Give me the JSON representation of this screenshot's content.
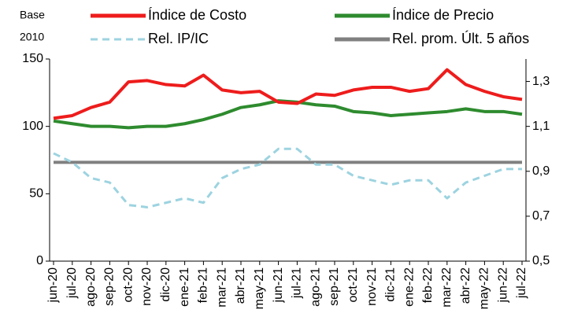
{
  "chart_data": {
    "type": "line",
    "y_label": [
      "Base",
      "2010"
    ],
    "categories": [
      "jun-20",
      "jul-20",
      "ago-20",
      "sep-20",
      "oct-20",
      "nov-20",
      "dic-20",
      "ene-21",
      "feb-21",
      "mar-21",
      "abr-21",
      "may-21",
      "jun-21",
      "jul-21",
      "ago-21",
      "sep-21",
      "oct-21",
      "nov-21",
      "dic-21",
      "ene-22",
      "feb-22",
      "mar-22",
      "abr-22",
      "may-22",
      "jun-22",
      "jul-22"
    ],
    "series": [
      {
        "name": "Índice de Costo",
        "color": "#ee1c1c",
        "dash": false,
        "values": [
          106,
          108,
          114,
          118,
          133,
          134,
          131,
          130,
          138,
          127,
          125,
          126,
          118,
          117,
          124,
          123,
          127,
          129,
          129,
          126,
          128,
          142,
          131,
          126,
          122,
          120
        ]
      },
      {
        "name": "Índice de Precio",
        "color": "#2e8b2e",
        "dash": false,
        "values": [
          104,
          102,
          100,
          100,
          99,
          100,
          100,
          102,
          105,
          109,
          114,
          116,
          119,
          118,
          116,
          115,
          111,
          110,
          108,
          109,
          110,
          111,
          113,
          111,
          111,
          109
        ]
      },
      {
        "name": "Rel. IP/IC",
        "color": "#9dd3e0",
        "dash": true,
        "axis": "y2",
        "values": [
          0.98,
          0.94,
          0.87,
          0.85,
          0.75,
          0.74,
          0.76,
          0.78,
          0.76,
          0.87,
          0.91,
          0.93,
          1.0,
          1.0,
          0.93,
          0.93,
          0.88,
          0.86,
          0.84,
          0.86,
          0.86,
          0.78,
          0.85,
          0.88,
          0.91,
          0.91
        ]
      },
      {
        "name": "Rel. prom. Últ. 5 años",
        "color": "#808080",
        "dash": false,
        "axis": "y2",
        "values": [
          0.94,
          0.94,
          0.94,
          0.94,
          0.94,
          0.94,
          0.94,
          0.94,
          0.94,
          0.94,
          0.94,
          0.94,
          0.94,
          0.94,
          0.94,
          0.94,
          0.94,
          0.94,
          0.94,
          0.94,
          0.94,
          0.94,
          0.94,
          0.94,
          0.94,
          0.94
        ]
      }
    ],
    "ylim": [
      0,
      150
    ],
    "yticks": [
      0,
      50,
      100,
      150
    ],
    "y2lim": [
      0.5,
      1.4
    ],
    "y2ticks": [
      {
        "value": 0.5,
        "label": "0,5"
      },
      {
        "value": 0.7,
        "label": "0,7"
      },
      {
        "value": 0.9,
        "label": "0,9"
      },
      {
        "value": 1.1,
        "label": "1,1"
      },
      {
        "value": 1.3,
        "label": "1,3"
      }
    ],
    "grid": false
  }
}
